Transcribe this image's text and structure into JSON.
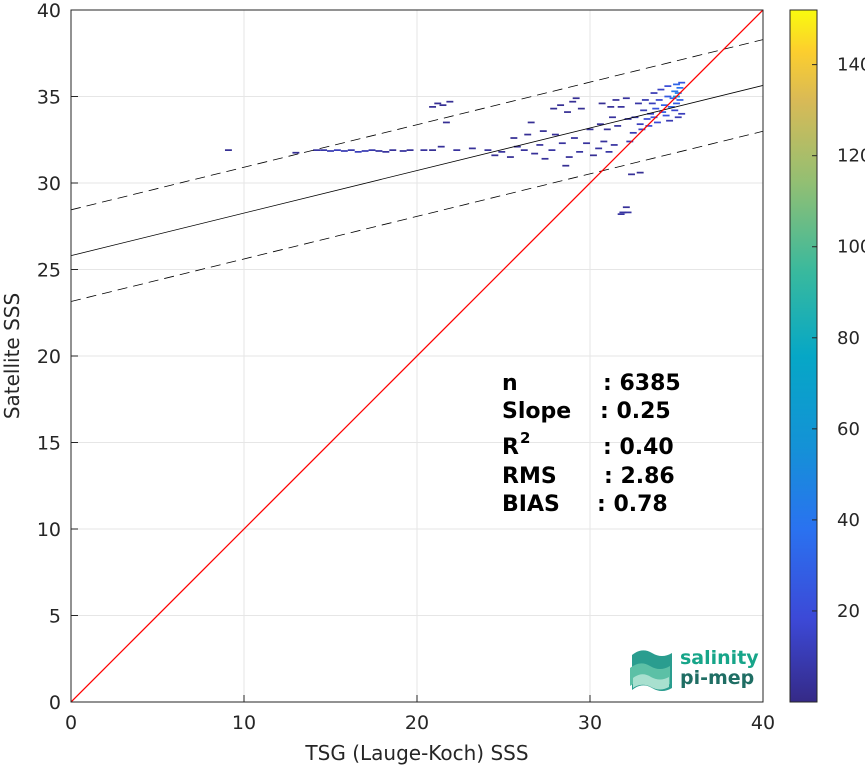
{
  "chart_data": {
    "type": "heatmap",
    "title": "",
    "xlabel": "TSG (Lauge-Koch) SSS",
    "ylabel": "Satellite SSS",
    "xlim": [
      0,
      40
    ],
    "ylim": [
      0,
      40
    ],
    "xticks": [
      "0",
      "10",
      "20",
      "30",
      "40"
    ],
    "yticks": [
      "0",
      "5",
      "10",
      "15",
      "20",
      "25",
      "30",
      "35",
      "40"
    ],
    "grid": true,
    "colorbar": {
      "range": [
        0,
        152
      ],
      "ticks": [
        "20",
        "40",
        "60",
        "80",
        "100",
        "120",
        "140"
      ],
      "colormap": "parula"
    },
    "identity_line": {
      "color": "#ff0000",
      "from": [
        0,
        0
      ],
      "to": [
        40,
        40
      ]
    },
    "regression": {
      "intercept": 25.8,
      "slope": 0.246,
      "band_offset": 2.65
    },
    "stats": [
      {
        "key": "n",
        "sep": ": 6385"
      },
      {
        "key": "Slope",
        "sep": ": 0.25"
      },
      {
        "key": "R",
        "sup": "2",
        "sep": ": 0.40"
      },
      {
        "key": "RMS",
        "sep": ": 2.86"
      },
      {
        "key": "BIAS",
        "sep": ": 0.78"
      }
    ],
    "density_points": [
      [
        9.1,
        31.9,
        3
      ],
      [
        13.0,
        31.75,
        3
      ],
      [
        14.2,
        31.9,
        6
      ],
      [
        14.6,
        31.9,
        8
      ],
      [
        15.0,
        31.85,
        10
      ],
      [
        15.4,
        31.9,
        12
      ],
      [
        15.8,
        31.85,
        10
      ],
      [
        16.2,
        31.9,
        8
      ],
      [
        16.6,
        31.8,
        12
      ],
      [
        17.0,
        31.85,
        10
      ],
      [
        17.4,
        31.9,
        8
      ],
      [
        17.8,
        31.85,
        6
      ],
      [
        18.2,
        31.8,
        5
      ],
      [
        18.6,
        31.9,
        4
      ],
      [
        19.2,
        31.85,
        5
      ],
      [
        19.6,
        31.9,
        4
      ],
      [
        20.4,
        31.9,
        5
      ],
      [
        20.9,
        31.9,
        3
      ],
      [
        21.2,
        34.6,
        3
      ],
      [
        21.5,
        34.5,
        3
      ],
      [
        21.9,
        34.7,
        3
      ],
      [
        20.9,
        34.4,
        3
      ],
      [
        21.7,
        33.5,
        3
      ],
      [
        21.4,
        32.1,
        4
      ],
      [
        22.3,
        31.9,
        5
      ],
      [
        23.2,
        32.0,
        4
      ],
      [
        24.1,
        31.9,
        5
      ],
      [
        24.5,
        31.6,
        3
      ],
      [
        24.9,
        31.8,
        5
      ],
      [
        25.4,
        31.5,
        3
      ],
      [
        25.8,
        32.1,
        4
      ],
      [
        26.2,
        31.9,
        5
      ],
      [
        25.6,
        32.6,
        3
      ],
      [
        26.6,
        33.5,
        3
      ],
      [
        26.4,
        32.8,
        3
      ],
      [
        26.8,
        31.7,
        4
      ],
      [
        27.1,
        32.2,
        5
      ],
      [
        27.4,
        31.4,
        4
      ],
      [
        27.8,
        31.9,
        6
      ],
      [
        27.3,
        33.0,
        3
      ],
      [
        28.0,
        32.8,
        4
      ],
      [
        28.4,
        32.3,
        5
      ],
      [
        28.8,
        31.5,
        4
      ],
      [
        27.9,
        34.3,
        3
      ],
      [
        28.3,
        34.5,
        3
      ],
      [
        28.7,
        34.1,
        3
      ],
      [
        29.0,
        34.7,
        3
      ],
      [
        29.5,
        34.3,
        3
      ],
      [
        29.2,
        34.9,
        3
      ],
      [
        28.6,
        31.0,
        3
      ],
      [
        29.1,
        32.6,
        5
      ],
      [
        29.4,
        31.8,
        6
      ],
      [
        29.8,
        32.3,
        5
      ],
      [
        30.0,
        33.1,
        4
      ],
      [
        30.2,
        31.6,
        3
      ],
      [
        30.5,
        32.0,
        6
      ],
      [
        30.8,
        32.4,
        5
      ],
      [
        31.1,
        31.8,
        7
      ],
      [
        31.4,
        32.2,
        6
      ],
      [
        30.6,
        33.4,
        4
      ],
      [
        31.0,
        33.1,
        4
      ],
      [
        31.3,
        33.8,
        5
      ],
      [
        31.6,
        33.3,
        6
      ],
      [
        30.7,
        34.6,
        3
      ],
      [
        31.2,
        34.4,
        4
      ],
      [
        31.5,
        34.8,
        4
      ],
      [
        31.8,
        34.4,
        5
      ],
      [
        32.1,
        34.9,
        5
      ],
      [
        32.2,
        33.7,
        6
      ],
      [
        32.3,
        32.4,
        9
      ],
      [
        32.5,
        32.9,
        10
      ],
      [
        32.6,
        33.8,
        8
      ],
      [
        32.8,
        34.6,
        7
      ],
      [
        32.4,
        30.5,
        4
      ],
      [
        32.9,
        30.6,
        3
      ],
      [
        32.9,
        33.4,
        12
      ],
      [
        33.0,
        33.1,
        14
      ],
      [
        33.1,
        34.2,
        10
      ],
      [
        33.2,
        34.8,
        9
      ],
      [
        33.3,
        33.7,
        18
      ],
      [
        33.4,
        33.3,
        20
      ],
      [
        33.5,
        34.0,
        16
      ],
      [
        33.6,
        34.6,
        12
      ],
      [
        33.7,
        35.2,
        10
      ],
      [
        33.7,
        33.8,
        24
      ],
      [
        33.8,
        34.3,
        22
      ],
      [
        33.9,
        33.5,
        18
      ],
      [
        34.0,
        34.8,
        16
      ],
      [
        34.1,
        35.4,
        14
      ],
      [
        34.2,
        34.1,
        28
      ],
      [
        34.3,
        34.5,
        30
      ],
      [
        34.4,
        33.9,
        22
      ],
      [
        34.5,
        35.0,
        26
      ],
      [
        34.5,
        35.6,
        20
      ],
      [
        34.7,
        34.4,
        30
      ],
      [
        34.8,
        34.9,
        34
      ],
      [
        34.9,
        35.3,
        40
      ],
      [
        35.0,
        35.7,
        32
      ],
      [
        35.0,
        34.6,
        26
      ],
      [
        35.1,
        35.2,
        45
      ],
      [
        35.2,
        35.5,
        38
      ],
      [
        35.2,
        34.8,
        28
      ],
      [
        35.3,
        35.8,
        24
      ],
      [
        35.0,
        35.0,
        55
      ],
      [
        34.9,
        34.2,
        16
      ],
      [
        35.3,
        34.0,
        12
      ],
      [
        35.1,
        33.8,
        10
      ],
      [
        34.6,
        33.6,
        10
      ],
      [
        31.9,
        28.3,
        6
      ],
      [
        31.8,
        28.2,
        6
      ],
      [
        32.2,
        28.3,
        6
      ],
      [
        32.1,
        28.6,
        4
      ]
    ]
  },
  "logo": {
    "line1": "salinity",
    "line2": "pi-mep"
  }
}
